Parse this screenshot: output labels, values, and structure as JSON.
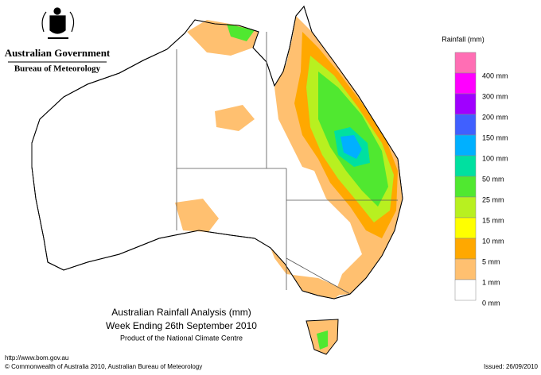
{
  "header": {
    "government": "Australian Government",
    "bureau": "Bureau of Meteorology"
  },
  "map": {
    "title": "Australian Rainfall Analysis (mm)",
    "subtitle": "Week Ending 26th September 2010",
    "note": "Product of the National Climate Centre"
  },
  "legend": {
    "title": "Rainfall (mm)",
    "colors": [
      "#ff6eb4",
      "#ff00ff",
      "#a000ff",
      "#4060ff",
      "#00b0ff",
      "#00e0a0",
      "#50e830",
      "#b8f020",
      "#ffff00",
      "#ffa800",
      "#ffc070",
      "#ffffff"
    ],
    "labels": [
      "400 mm",
      "300 mm",
      "200 mm",
      "150 mm",
      "100 mm",
      "50 mm",
      "25 mm",
      "15 mm",
      "10 mm",
      "5 mm",
      "1 mm",
      "0 mm"
    ]
  },
  "footer": {
    "url": "http://www.bom.gov.au",
    "copyright": "© Commonwealth of Australia 2010, Australian Bureau of Meteorology",
    "issued": "Issued: 26/09/2010"
  }
}
